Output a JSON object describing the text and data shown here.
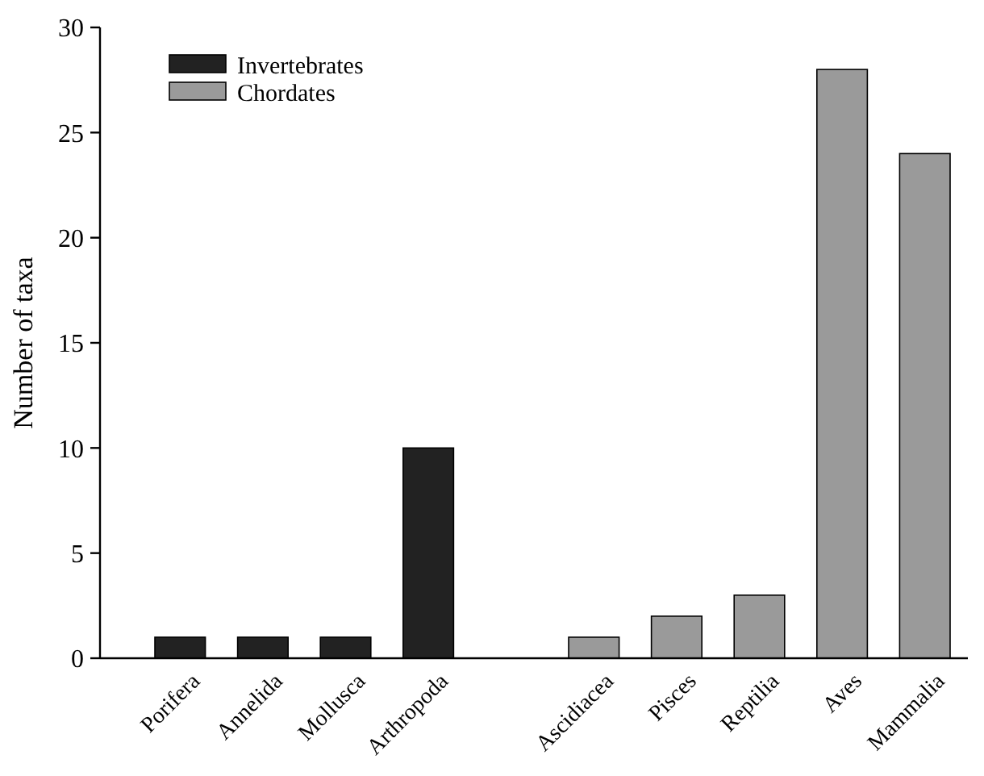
{
  "chart_data": {
    "type": "bar",
    "ylabel": "Number of taxa",
    "categories": [
      "Porifera",
      "Annelida",
      "Mollusca",
      "Arthropoda",
      null,
      "Ascidiacea",
      "Pisces",
      "Reptilia",
      "Aves",
      "Mammalia"
    ],
    "series": [
      {
        "name": "Invertebrates",
        "color": "#222222",
        "values": [
          1,
          1,
          1,
          10,
          null,
          null,
          null,
          null,
          null,
          null
        ]
      },
      {
        "name": "Chordates",
        "color": "#9a9a9a",
        "values": [
          null,
          null,
          null,
          null,
          null,
          1,
          2,
          3,
          28,
          24
        ]
      }
    ],
    "ylim": [
      0,
      30
    ],
    "yticks": [
      0,
      5,
      10,
      15,
      20,
      25,
      30
    ],
    "legend": "top left",
    "grid": false
  }
}
